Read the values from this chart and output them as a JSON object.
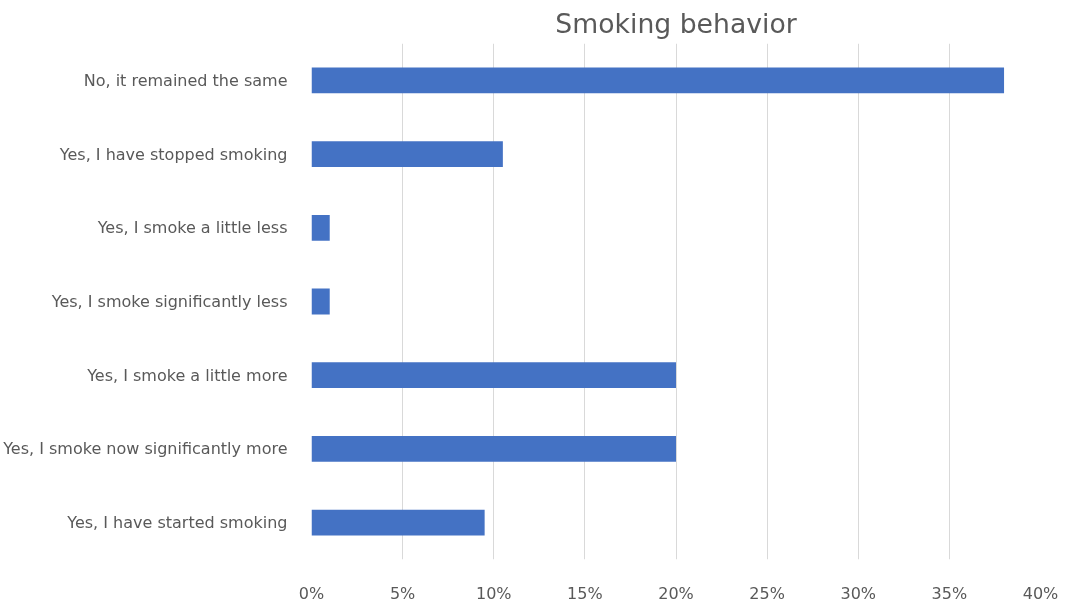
{
  "chart_data": {
    "type": "bar",
    "orientation": "horizontal",
    "title": "Smoking behavior",
    "categories": [
      "No, it remained the same",
      "Yes, I have stopped smoking",
      "Yes, I smoke a little less",
      "Yes, I smoke significantly less",
      "Yes, I smoke a little more",
      "Yes, I smoke now significantly more",
      "Yes, I have started smoking"
    ],
    "values": [
      38,
      10.5,
      1,
      1,
      20,
      20,
      9.5
    ],
    "color": "#4472c4",
    "xlim": [
      0,
      40
    ],
    "xticks": [
      {
        "value": 0,
        "label": "0%"
      },
      {
        "value": 5,
        "label": "5%"
      },
      {
        "value": 10,
        "label": "10%"
      },
      {
        "value": 15,
        "label": "15%"
      },
      {
        "value": 20,
        "label": "20%"
      },
      {
        "value": 25,
        "label": "25%"
      },
      {
        "value": 30,
        "label": "30%"
      },
      {
        "value": 35,
        "label": "35%"
      },
      {
        "value": 40,
        "label": "40%"
      }
    ],
    "grid": "x"
  }
}
